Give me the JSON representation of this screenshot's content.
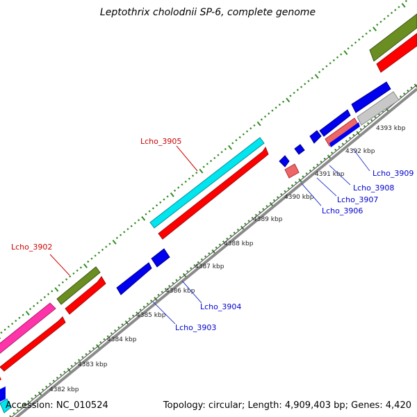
{
  "header": {
    "title": "Leptothrix cholodnii SP-6, complete genome"
  },
  "footer": {
    "accession": "Accession: NC_010524",
    "summary": "Topology: circular; Length: 4,909,403 bp; Genes: 4,420"
  },
  "colors": {
    "background": "#ffffff",
    "axis": "#8a8a8a",
    "tick": "#2e8b1e",
    "red_label": "#cc0000",
    "blue_label": "#0000cc",
    "leader": "#3344cc"
  },
  "scale": {
    "labels": [
      "4382 kbp",
      "4383 kbp",
      "4384 kbp",
      "4385 kbp",
      "4386 kbp",
      "4387 kbp",
      "4388 kbp",
      "4389 kbp",
      "4390 kbp",
      "4391 kbp",
      "4392 kbp",
      "4393 kbp"
    ]
  },
  "genes": [
    {
      "id": "lcho-3902",
      "label": "Lcho_3902",
      "color": "#cc0000"
    },
    {
      "id": "lcho-3903",
      "label": "Lcho_3903",
      "color": "#0000cc"
    },
    {
      "id": "lcho-3904",
      "label": "Lcho_3904",
      "color": "#0000cc"
    },
    {
      "id": "lcho-3905",
      "label": "Lcho_3905",
      "color": "#cc0000"
    },
    {
      "id": "lcho-3906",
      "label": "Lcho_3906",
      "color": "#0000cc"
    },
    {
      "id": "lcho-3907",
      "label": "Lcho_3907",
      "color": "#0000cc"
    },
    {
      "id": "lcho-3908",
      "label": "Lcho_3908",
      "color": "#0000cc"
    },
    {
      "id": "lcho-3909",
      "label": "Lcho_3909",
      "color": "#0000cc"
    }
  ],
  "feature_colors": {
    "cds_blue": "#0000ee",
    "cds_red": "#ff0000",
    "magenta": "#ff33aa",
    "olive": "#6b8e23",
    "cyan": "#00e5ee",
    "salmon": "#ee6666",
    "grey": "#c8c8c8"
  }
}
